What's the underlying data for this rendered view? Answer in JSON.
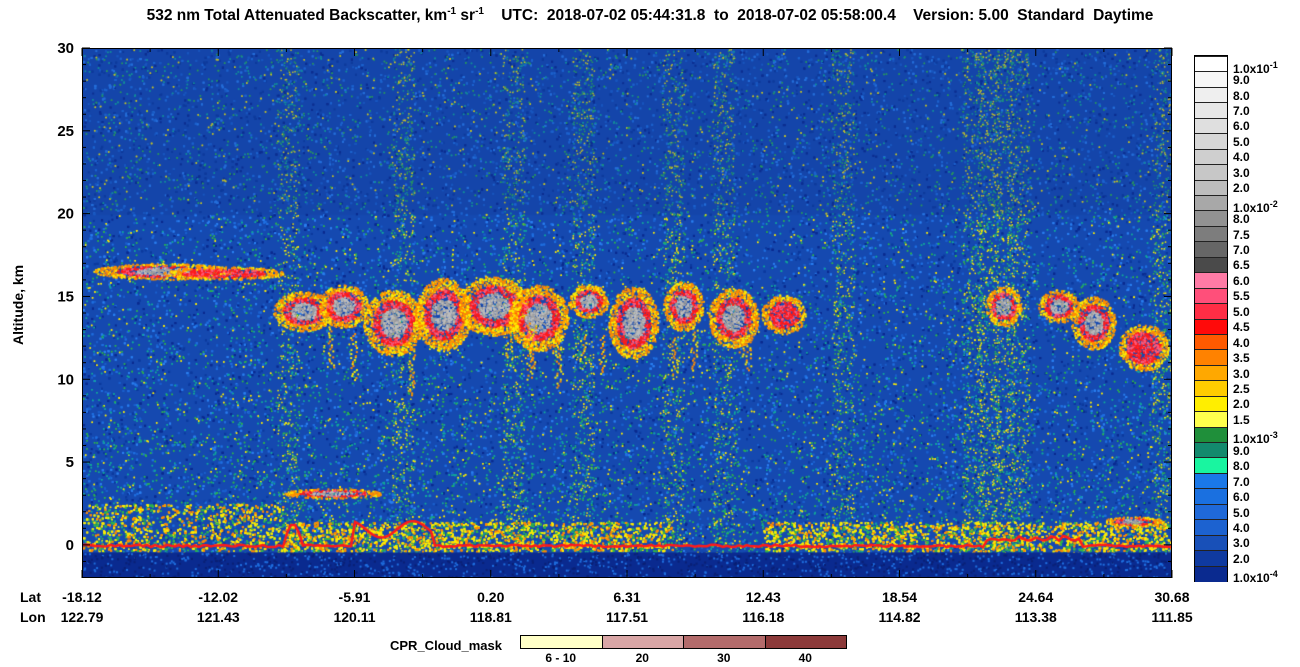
{
  "header": {
    "title_prefix": "532 nm Total Attenuated Backscatter, km",
    "title_sup1": "-1",
    "title_mid": " sr",
    "title_sup2": "-1",
    "title_suffix": "    UTC:  2018-07-02 05:44:31.8  to  2018-07-02 05:58:00.4    Version: 5.00  Standard  Daytime"
  },
  "colors": {
    "background_blue": "#1549b0",
    "dark_blue": "#0a2a8f",
    "mid_blue": "#1f6fe0",
    "teal": "#12a89a",
    "green": "#2fb34b",
    "yellow": "#ffee00",
    "orange": "#ff8c00",
    "red": "#ff1a1a",
    "gray": "#9e9e9e",
    "white": "#f4f4f4"
  },
  "chart_data": {
    "type": "heatmap",
    "title": "532 nm Total Attenuated Backscatter, km-1 sr-1",
    "ylabel": "Altitude, km",
    "ylim": [
      -2,
      30
    ],
    "yticks": [
      "30",
      "25",
      "20",
      "15",
      "10",
      "5",
      "0"
    ],
    "ytick_values": [
      30,
      25,
      20,
      15,
      10,
      5,
      0
    ],
    "x_row_headers": [
      "Lat",
      "Lon"
    ],
    "x_ticks_lat": [
      "-18.12",
      "-12.02",
      "-5.91",
      "0.20",
      "6.31",
      "12.43",
      "18.54",
      "24.64",
      "30.68"
    ],
    "x_ticks_lon": [
      "122.79",
      "121.43",
      "120.11",
      "118.81",
      "117.51",
      "116.18",
      "114.82",
      "113.38",
      "111.85"
    ],
    "colorbar_labels": [
      "1.0x10",
      "9.0",
      "8.0",
      "7.0",
      "6.0",
      "5.0",
      "4.0",
      "3.0",
      "2.0",
      "1.0x10",
      "8.0",
      "7.5",
      "7.0",
      "6.5",
      "6.0",
      "5.5",
      "5.0",
      "4.5",
      "4.0",
      "3.5",
      "3.0",
      "2.5",
      "2.0",
      "1.5",
      "1.0x10",
      "9.0",
      "8.0",
      "7.0",
      "6.0",
      "5.0",
      "4.0",
      "3.0",
      "2.0",
      "1.0x10"
    ],
    "colorbar_exponents": [
      "-1",
      "",
      "",
      "",
      "",
      "",
      "",
      "",
      "",
      "-2",
      "",
      "",
      "",
      "",
      "",
      "",
      "",
      "",
      "",
      "",
      "",
      "",
      "",
      "",
      "-3",
      "",
      "",
      "",
      "",
      "",
      "",
      "",
      "",
      "-4"
    ],
    "colorbar_colors": [
      "#ffffff",
      "#f7f7f7",
      "#efefef",
      "#e7e7e7",
      "#dfdfdf",
      "#d7d7d7",
      "#cfcfcf",
      "#c7c7c7",
      "#bdbdbd",
      "#a8a8a8",
      "#929292",
      "#7d7d7d",
      "#666666",
      "#4a4a4a",
      "#ff7ba6",
      "#ff4f7a",
      "#ff2d45",
      "#ff0a0a",
      "#ff5a00",
      "#ff8200",
      "#ffa800",
      "#ffcc00",
      "#ffee00",
      "#ffff4d",
      "#1f8f3a",
      "#138a6d",
      "#19f5a0",
      "#1a78e8",
      "#1a70e0",
      "#1f69d8",
      "#1c62d0",
      "#1850b8",
      "#0f3aa0",
      "#0a2a8f"
    ],
    "cpr_legend_title": "CPR_Cloud_mask",
    "cpr_labels": [
      "6 - 10",
      "20",
      "30",
      "40"
    ],
    "cpr_colors": [
      "#ffffc7",
      "#d9a6a6",
      "#b36b6b",
      "#8c3a3a"
    ]
  }
}
